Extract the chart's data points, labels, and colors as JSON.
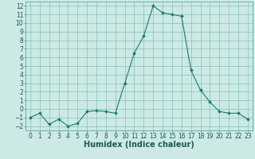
{
  "x": [
    0,
    1,
    2,
    3,
    4,
    5,
    6,
    7,
    8,
    9,
    10,
    11,
    12,
    13,
    14,
    15,
    16,
    17,
    18,
    19,
    20,
    21,
    22,
    23
  ],
  "y": [
    -1.0,
    -0.5,
    -1.8,
    -1.2,
    -2.0,
    -1.7,
    -0.3,
    -0.2,
    -0.3,
    -0.5,
    3.0,
    6.5,
    8.5,
    12.0,
    11.2,
    11.0,
    10.8,
    4.5,
    2.2,
    0.8,
    -0.3,
    -0.5,
    -0.5,
    -1.2
  ],
  "line_color": "#1a7a6e",
  "marker": "D",
  "marker_size": 2.0,
  "bg_color": "#cce9e5",
  "grid_color": "#5aada0",
  "xlabel": "Humidex (Indice chaleur)",
  "xlim": [
    -0.5,
    23.5
  ],
  "ylim": [
    -2.5,
    12.5
  ],
  "yticks": [
    -2,
    -1,
    0,
    1,
    2,
    3,
    4,
    5,
    6,
    7,
    8,
    9,
    10,
    11,
    12
  ],
  "xticks": [
    0,
    1,
    2,
    3,
    4,
    5,
    6,
    7,
    8,
    9,
    10,
    11,
    12,
    13,
    14,
    15,
    16,
    17,
    18,
    19,
    20,
    21,
    22,
    23
  ],
  "font_color": "#1a5c54",
  "tick_fontsize": 5.5,
  "xlabel_fontsize": 7.0,
  "linewidth": 0.8
}
